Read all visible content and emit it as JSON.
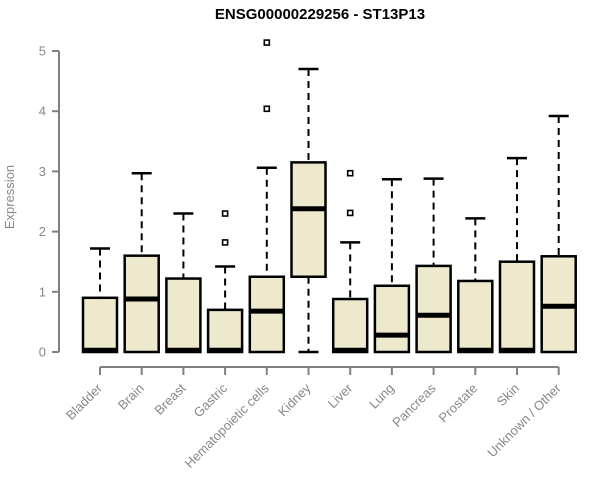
{
  "title": "ENSG00000229256 - ST13P13",
  "chart_data": {
    "type": "boxplot",
    "title": "ENSG00000229256 - ST13P13",
    "xlabel": "",
    "ylabel": "Expression",
    "ylim": [
      0,
      5
    ],
    "yticks": [
      0,
      1,
      2,
      3,
      4,
      5
    ],
    "grid": false,
    "legend": "none",
    "categories": [
      "Bladder",
      "Brain",
      "Breast",
      "Gastric",
      "Hematopoietic cells",
      "Kidney",
      "Liver",
      "Lung",
      "Pancreas",
      "Prostate",
      "Skin",
      "Unknown / Other"
    ],
    "series": [
      {
        "name": "Bladder",
        "min": 0,
        "q1": 0,
        "median": 0.03,
        "q3": 0.9,
        "max": 1.72,
        "outliers": []
      },
      {
        "name": "Brain",
        "min": 0,
        "q1": 0,
        "median": 0.88,
        "q3": 1.6,
        "max": 2.97,
        "outliers": []
      },
      {
        "name": "Breast",
        "min": 0,
        "q1": 0,
        "median": 0.03,
        "q3": 1.22,
        "max": 2.3,
        "outliers": []
      },
      {
        "name": "Gastric",
        "min": 0,
        "q1": 0,
        "median": 0.03,
        "q3": 0.7,
        "max": 1.42,
        "outliers": [
          1.82,
          2.3
        ]
      },
      {
        "name": "Hematopoietic cells",
        "min": 0,
        "q1": 0,
        "median": 0.68,
        "q3": 1.25,
        "max": 3.06,
        "outliers": [
          4.04,
          5.14
        ]
      },
      {
        "name": "Kidney",
        "min": 0,
        "q1": 1.25,
        "median": 2.38,
        "q3": 3.15,
        "max": 4.7,
        "outliers": []
      },
      {
        "name": "Liver",
        "min": 0,
        "q1": 0,
        "median": 0.03,
        "q3": 0.88,
        "max": 1.82,
        "outliers": [
          2.31,
          2.97
        ]
      },
      {
        "name": "Lung",
        "min": 0,
        "q1": 0,
        "median": 0.28,
        "q3": 1.1,
        "max": 2.87,
        "outliers": []
      },
      {
        "name": "Pancreas",
        "min": 0,
        "q1": 0,
        "median": 0.61,
        "q3": 1.43,
        "max": 2.88,
        "outliers": []
      },
      {
        "name": "Prostate",
        "min": 0,
        "q1": 0,
        "median": 0.03,
        "q3": 1.18,
        "max": 2.22,
        "outliers": []
      },
      {
        "name": "Skin",
        "min": 0,
        "q1": 0,
        "median": 0.03,
        "q3": 1.5,
        "max": 3.22,
        "outliers": []
      },
      {
        "name": "Unknown / Other",
        "min": 0,
        "q1": 0,
        "median": 0.76,
        "q3": 1.59,
        "max": 3.92,
        "outliers": []
      }
    ]
  },
  "colors": {
    "box_fill": "#EEE8CD",
    "box_border": "#000000",
    "median": "#000000",
    "whisker": "#000000",
    "axis": "#808080",
    "tick_label": "#888888",
    "title_text": "#000000",
    "background": "#FFFFFF"
  }
}
